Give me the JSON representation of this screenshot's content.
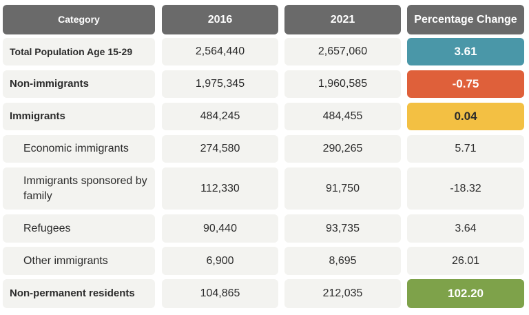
{
  "table": {
    "headers": [
      "Category",
      "2016",
      "2021",
      "Percentage Change"
    ],
    "rows": [
      {
        "category": "Total Population Age 15-29",
        "v2016": "2,564,440",
        "v2021": "2,657,060",
        "pct": "3.61",
        "highlight": "#4a97a8"
      },
      {
        "category": "Non-immigrants",
        "v2016": "1,975,345",
        "v2021": "1,960,585",
        "pct": "-0.75",
        "highlight": "#df603a"
      },
      {
        "category": "Immigrants",
        "v2016": "484,245",
        "v2021": "484,455",
        "pct": "0.04",
        "highlight": "#f3c043"
      },
      {
        "category": "Economic immigrants",
        "v2016": "274,580",
        "v2021": "290,265",
        "pct": "5.71"
      },
      {
        "category": "Immigrants sponsored by family",
        "v2016": "112,330",
        "v2021": "91,750",
        "pct": "-18.32"
      },
      {
        "category": "Refugees",
        "v2016": "90,440",
        "v2021": "93,735",
        "pct": "3.64"
      },
      {
        "category": "Other immigrants",
        "v2016": "6,900",
        "v2021": "8,695",
        "pct": "26.01"
      },
      {
        "category": "Non-permanent residents",
        "v2016": "104,865",
        "v2021": "212,035",
        "pct": "102.20",
        "highlight": "#7ea24a"
      }
    ]
  },
  "chart_data": {
    "type": "table",
    "columns": [
      "Category",
      "2016",
      "2021",
      "Percentage Change"
    ],
    "rows": [
      [
        "Total Population Age 15-29",
        2564440,
        2657060,
        3.61
      ],
      [
        "Non-immigrants",
        1975345,
        1960585,
        -0.75
      ],
      [
        "Immigrants",
        484245,
        484455,
        0.04
      ],
      [
        "Economic immigrants",
        274580,
        290265,
        5.71
      ],
      [
        "Immigrants sponsored by family",
        112330,
        91750,
        -18.32
      ],
      [
        "Refugees",
        90440,
        93735,
        3.64
      ],
      [
        "Other immigrants",
        6900,
        8695,
        26.01
      ],
      [
        "Non-permanent residents",
        104865,
        212035,
        102.2
      ]
    ]
  }
}
